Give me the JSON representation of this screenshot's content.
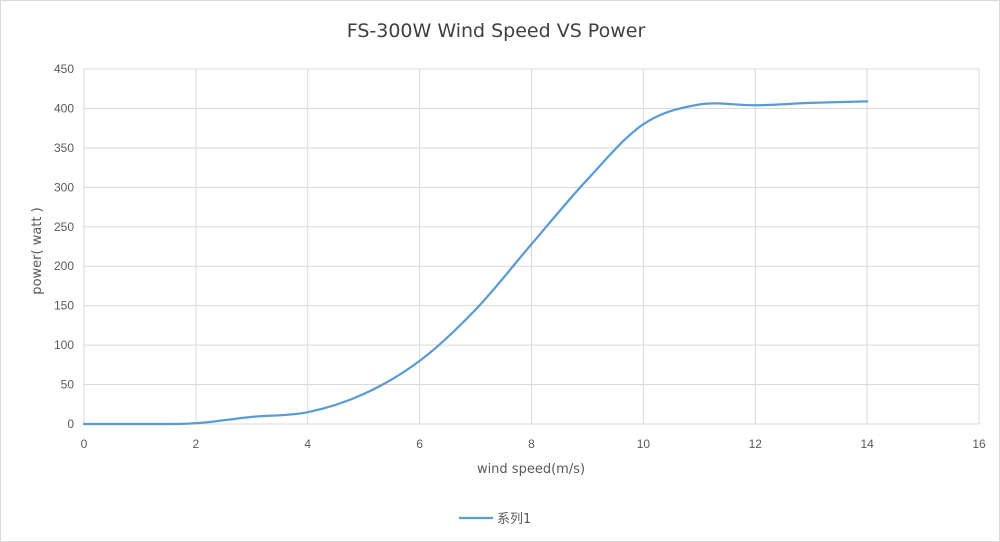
{
  "chart_data": {
    "type": "line",
    "title": "FS-300W Wind Speed VS Power",
    "xlabel": "wind speed(m/s)",
    "ylabel": "power( watt )",
    "xlim": [
      0,
      16
    ],
    "ylim": [
      0,
      450
    ],
    "x_ticks": [
      0,
      2,
      4,
      6,
      8,
      10,
      12,
      14,
      16
    ],
    "y_ticks": [
      0,
      50,
      100,
      150,
      200,
      250,
      300,
      350,
      400,
      450
    ],
    "grid": true,
    "smooth": true,
    "legend_position": "bottom",
    "series": [
      {
        "name": "系列1",
        "color": "#5b9bd5",
        "x": [
          0,
          1,
          2,
          3,
          4,
          5,
          6,
          7,
          8,
          9,
          10,
          11,
          12,
          13,
          14
        ],
        "y": [
          0,
          0,
          1,
          9,
          15,
          38,
          80,
          145,
          228,
          310,
          380,
          405,
          404,
          407,
          409
        ]
      }
    ]
  }
}
